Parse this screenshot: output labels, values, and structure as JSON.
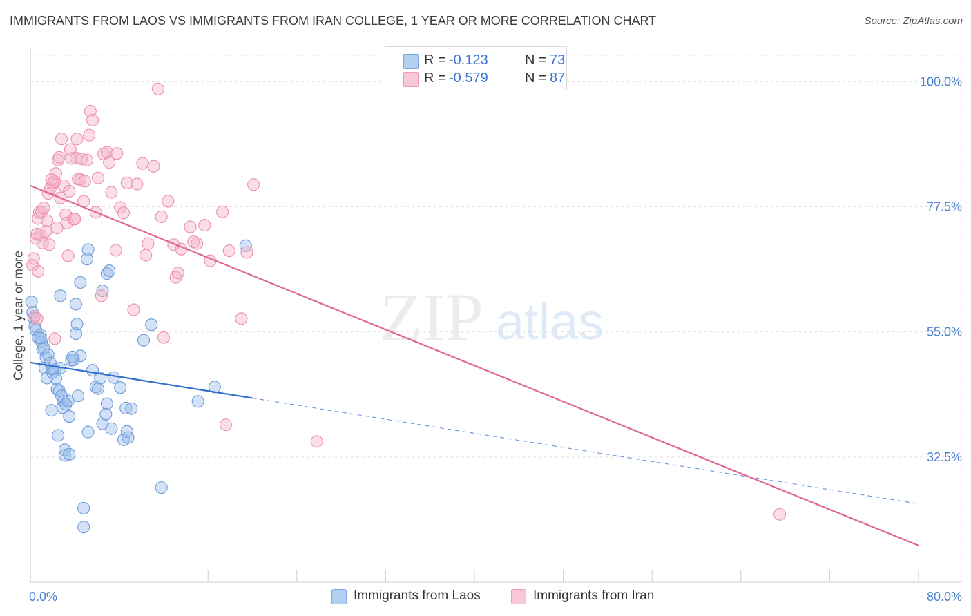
{
  "title": "IMMIGRANTS FROM LAOS VS IMMIGRANTS FROM IRAN COLLEGE, 1 YEAR OR MORE CORRELATION CHART",
  "source": "Source: ZipAtlas.com",
  "watermark": {
    "zip": "ZIP",
    "atlas": "atlas"
  },
  "legend": {
    "series1": {
      "r_label": "R =",
      "r_value": "-0.123",
      "n_label": "N =",
      "n_value": "73"
    },
    "series2": {
      "r_label": "R =",
      "r_value": "-0.579",
      "n_label": "N =",
      "n_value": "87"
    }
  },
  "colors": {
    "laos_fill": "#9dbfeb",
    "laos_stroke": "#6d9bd8",
    "laos_line": "#2e6fd0",
    "iran_fill": "#f5b4c8",
    "iran_stroke": "#ec8fab",
    "iran_line": "#e06692",
    "tick_text": "#4a7fd0"
  },
  "chart_data": {
    "type": "scatter",
    "title": "IMMIGRANTS FROM LAOS VS IMMIGRANTS FROM IRAN COLLEGE, 1 YEAR OR MORE CORRELATION CHART",
    "xlabel": "",
    "ylabel": "College, 1 year or more",
    "xlim": [
      0,
      80
    ],
    "ylim": [
      10,
      106
    ],
    "x_tick_labels": [
      "0.0%",
      "80.0%"
    ],
    "y_ticks": [
      32.5,
      55.0,
      77.5,
      100.0
    ],
    "y_tick_labels": [
      "32.5%",
      "55.0%",
      "77.5%",
      "100.0%"
    ],
    "legend_position": "bottom-center",
    "series": [
      {
        "name": "Immigrants from Laos",
        "r": -0.123,
        "n": 73,
        "trend": {
          "x_start": 0,
          "y_start": 49.5,
          "x_solid_end": 20,
          "y_solid_end": 43.1,
          "x_end": 80,
          "y_end": 24.1
        },
        "points": [
          [
            0.1,
            60.4
          ],
          [
            0.2,
            58.5
          ],
          [
            0.3,
            57.5
          ],
          [
            0.4,
            56.0
          ],
          [
            0.5,
            55.3
          ],
          [
            0.7,
            54.0
          ],
          [
            0.9,
            54.5
          ],
          [
            1.0,
            53.2
          ],
          [
            1.1,
            51.9
          ],
          [
            1.2,
            52.2
          ],
          [
            1.4,
            50.4
          ],
          [
            1.6,
            50.9
          ],
          [
            1.3,
            48.5
          ],
          [
            1.8,
            49.4
          ],
          [
            1.5,
            46.7
          ],
          [
            2.0,
            47.7
          ],
          [
            2.2,
            48.1
          ],
          [
            2.3,
            46.6
          ],
          [
            2.4,
            44.7
          ],
          [
            2.6,
            44.4
          ],
          [
            2.8,
            43.5
          ],
          [
            3.0,
            42.5
          ],
          [
            2.9,
            41.4
          ],
          [
            2.7,
            48.5
          ],
          [
            1.9,
            40.9
          ],
          [
            3.2,
            42.0
          ],
          [
            3.4,
            42.6
          ],
          [
            3.5,
            39.8
          ],
          [
            3.7,
            49.9
          ],
          [
            3.9,
            50.0
          ],
          [
            4.1,
            54.7
          ],
          [
            4.2,
            56.4
          ],
          [
            4.3,
            43.5
          ],
          [
            4.5,
            50.7
          ],
          [
            2.5,
            36.4
          ],
          [
            3.1,
            33.8
          ],
          [
            3.1,
            32.8
          ],
          [
            3.5,
            33.0
          ],
          [
            5.2,
            37.0
          ],
          [
            5.6,
            48.1
          ],
          [
            5.9,
            45.1
          ],
          [
            6.1,
            44.8
          ],
          [
            6.3,
            46.7
          ],
          [
            6.5,
            38.5
          ],
          [
            6.9,
            42.1
          ],
          [
            6.8,
            40.2
          ],
          [
            7.3,
            37.6
          ],
          [
            7.5,
            46.8
          ],
          [
            8.1,
            45.0
          ],
          [
            8.4,
            35.6
          ],
          [
            8.7,
            37.1
          ],
          [
            8.8,
            36.0
          ],
          [
            8.6,
            41.3
          ],
          [
            9.1,
            41.2
          ],
          [
            10.2,
            53.5
          ],
          [
            10.9,
            56.3
          ],
          [
            11.8,
            27.0
          ],
          [
            4.8,
            23.3
          ],
          [
            4.8,
            19.9
          ],
          [
            15.1,
            42.5
          ],
          [
            16.6,
            45.1
          ],
          [
            19.4,
            70.5
          ],
          [
            5.2,
            69.8
          ],
          [
            6.9,
            65.5
          ],
          [
            7.1,
            66.0
          ],
          [
            6.5,
            62.4
          ],
          [
            4.5,
            63.9
          ],
          [
            5.1,
            68.1
          ],
          [
            2.7,
            61.5
          ],
          [
            4.1,
            60.0
          ],
          [
            0.9,
            53.9
          ],
          [
            2.0,
            48.4
          ],
          [
            3.8,
            50.5
          ]
        ]
      },
      {
        "name": "Immigrants from Iran",
        "r": -0.579,
        "n": 87,
        "trend": {
          "x_start": 0,
          "y_start": 81.3,
          "x_end": 80,
          "y_end": 16.6
        },
        "points": [
          [
            0.2,
            67.0
          ],
          [
            0.3,
            68.2
          ],
          [
            0.4,
            57.8
          ],
          [
            0.5,
            71.8
          ],
          [
            0.6,
            72.6
          ],
          [
            0.7,
            75.4
          ],
          [
            0.8,
            76.5
          ],
          [
            1.0,
            76.6
          ],
          [
            1.2,
            77.3
          ],
          [
            1.4,
            73.1
          ],
          [
            1.6,
            79.9
          ],
          [
            1.8,
            80.8
          ],
          [
            2.0,
            81.8
          ],
          [
            2.2,
            82.0
          ],
          [
            2.3,
            83.5
          ],
          [
            2.5,
            85.9
          ],
          [
            2.6,
            86.4
          ],
          [
            2.8,
            89.7
          ],
          [
            3.0,
            81.3
          ],
          [
            3.2,
            76.1
          ],
          [
            3.3,
            74.6
          ],
          [
            3.5,
            80.3
          ],
          [
            3.6,
            87.8
          ],
          [
            3.9,
            75.3
          ],
          [
            4.0,
            75.3
          ],
          [
            4.1,
            86.3
          ],
          [
            4.3,
            82.5
          ],
          [
            4.2,
            89.7
          ],
          [
            4.5,
            82.4
          ],
          [
            4.6,
            86.1
          ],
          [
            4.8,
            78.5
          ],
          [
            4.9,
            82.1
          ],
          [
            5.1,
            85.9
          ],
          [
            5.3,
            90.4
          ],
          [
            5.4,
            94.7
          ],
          [
            5.6,
            93.1
          ],
          [
            5.9,
            76.5
          ],
          [
            6.1,
            82.7
          ],
          [
            6.4,
            61.5
          ],
          [
            6.6,
            87.0
          ],
          [
            6.9,
            87.3
          ],
          [
            7.1,
            85.5
          ],
          [
            7.3,
            80.1
          ],
          [
            7.7,
            69.7
          ],
          [
            7.8,
            87.1
          ],
          [
            8.1,
            77.4
          ],
          [
            8.4,
            76.4
          ],
          [
            8.7,
            81.8
          ],
          [
            9.3,
            59.0
          ],
          [
            9.6,
            81.6
          ],
          [
            10.1,
            85.3
          ],
          [
            10.4,
            68.8
          ],
          [
            10.6,
            70.9
          ],
          [
            11.1,
            84.8
          ],
          [
            11.5,
            98.7
          ],
          [
            11.8,
            75.7
          ],
          [
            12.0,
            54.0
          ],
          [
            12.4,
            78.5
          ],
          [
            12.9,
            70.7
          ],
          [
            13.1,
            64.8
          ],
          [
            13.3,
            65.6
          ],
          [
            13.6,
            69.9
          ],
          [
            14.4,
            73.9
          ],
          [
            14.7,
            71.2
          ],
          [
            15.0,
            70.9
          ],
          [
            15.7,
            74.2
          ],
          [
            16.2,
            67.8
          ],
          [
            17.3,
            76.6
          ],
          [
            17.6,
            38.3
          ],
          [
            17.9,
            69.6
          ],
          [
            19.5,
            69.3
          ],
          [
            20.1,
            81.5
          ],
          [
            19.0,
            57.4
          ],
          [
            25.8,
            35.3
          ],
          [
            67.5,
            22.2
          ],
          [
            1.1,
            71.0
          ],
          [
            0.9,
            72.5
          ],
          [
            0.7,
            65.9
          ],
          [
            1.7,
            70.7
          ],
          [
            2.2,
            53.8
          ],
          [
            2.7,
            79.1
          ],
          [
            3.4,
            68.7
          ],
          [
            0.6,
            57.4
          ],
          [
            1.5,
            75.0
          ],
          [
            3.7,
            86.2
          ],
          [
            2.4,
            73.7
          ],
          [
            1.9,
            82.4
          ]
        ]
      }
    ]
  },
  "bottom_legend": {
    "laos_label": "Immigrants from Laos",
    "iran_label": "Immigrants from Iran"
  }
}
